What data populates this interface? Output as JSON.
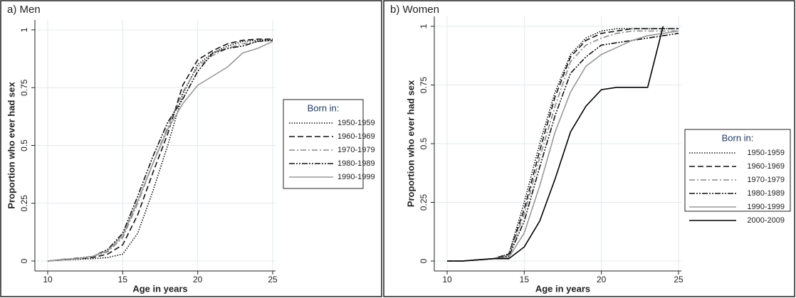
{
  "chart_data": [
    {
      "type": "line",
      "title": "a)  Men",
      "xlabel": "Age in years",
      "ylabel": "Proportion who ever had sex",
      "legend_title": "Born in:",
      "x": [
        10,
        11,
        12,
        13,
        14,
        15,
        16,
        17,
        18,
        19,
        20,
        21,
        22,
        23,
        24,
        25
      ],
      "xlim": [
        10,
        25
      ],
      "xticks": [
        10,
        15,
        20,
        25
      ],
      "ylim": [
        0,
        1
      ],
      "yticks": [
        0,
        0.25,
        0.5,
        0.75,
        1
      ],
      "grid": true,
      "legend": "right",
      "series": [
        {
          "name": "1950-1959",
          "color": "#111111",
          "dash": "dotted",
          "values": [
            0,
            0.005,
            0.007,
            0.01,
            0.015,
            0.03,
            0.12,
            0.3,
            0.5,
            0.72,
            0.85,
            0.9,
            0.93,
            0.95,
            0.955,
            0.96
          ]
        },
        {
          "name": "1960-1969",
          "color": "#111111",
          "dash": "dashed",
          "values": [
            0,
            0.005,
            0.01,
            0.015,
            0.03,
            0.07,
            0.2,
            0.38,
            0.55,
            0.76,
            0.87,
            0.91,
            0.94,
            0.955,
            0.96,
            0.96
          ]
        },
        {
          "name": "1970-1979",
          "color": "#888888",
          "dash": "dashdot",
          "values": [
            0,
            0.005,
            0.01,
            0.02,
            0.04,
            0.1,
            0.25,
            0.42,
            0.58,
            0.73,
            0.84,
            0.89,
            0.92,
            0.94,
            0.95,
            0.955
          ]
        },
        {
          "name": "1980-1989",
          "color": "#111111",
          "dash": "dashdotdot",
          "values": [
            0,
            0.007,
            0.012,
            0.02,
            0.05,
            0.12,
            0.28,
            0.45,
            0.6,
            0.7,
            0.82,
            0.9,
            0.92,
            0.93,
            0.95,
            0.955
          ]
        },
        {
          "name": "1990-1999",
          "color": "#999999",
          "dash": "solid",
          "values": [
            0,
            0.007,
            0.01,
            0.02,
            0.045,
            0.11,
            0.26,
            0.42,
            0.57,
            0.68,
            0.76,
            0.8,
            0.84,
            0.9,
            0.92,
            0.95
          ]
        }
      ]
    },
    {
      "type": "line",
      "title": "b) Women",
      "xlabel": "Age in years",
      "ylabel": "Proportion who ever had sex",
      "legend_title": "Born in:",
      "x": [
        10,
        11,
        12,
        13,
        14,
        15,
        16,
        17,
        18,
        19,
        20,
        21,
        22,
        23,
        24,
        25
      ],
      "xlim": [
        10,
        25
      ],
      "xticks": [
        10,
        15,
        20,
        25
      ],
      "ylim": [
        0,
        1
      ],
      "yticks": [
        0,
        0.25,
        0.5,
        0.75,
        1
      ],
      "grid": true,
      "legend": "right",
      "series": [
        {
          "name": "1950-1959",
          "color": "#111111",
          "dash": "dotted",
          "values": [
            0,
            0,
            0.005,
            0.01,
            0.03,
            0.25,
            0.5,
            0.72,
            0.88,
            0.95,
            0.98,
            0.99,
            0.99,
            0.99,
            0.99,
            0.99
          ]
        },
        {
          "name": "1960-1969",
          "color": "#111111",
          "dash": "dashed",
          "values": [
            0,
            0,
            0.005,
            0.01,
            0.03,
            0.22,
            0.47,
            0.7,
            0.87,
            0.94,
            0.97,
            0.98,
            0.99,
            0.99,
            0.99,
            0.99
          ]
        },
        {
          "name": "1970-1979",
          "color": "#888888",
          "dash": "dashdot",
          "values": [
            0,
            0,
            0.005,
            0.01,
            0.025,
            0.2,
            0.44,
            0.66,
            0.85,
            0.92,
            0.95,
            0.97,
            0.98,
            0.98,
            0.98,
            0.98
          ]
        },
        {
          "name": "1980-1989",
          "color": "#111111",
          "dash": "dashdotdot",
          "values": [
            0,
            0,
            0.005,
            0.01,
            0.02,
            0.17,
            0.4,
            0.62,
            0.8,
            0.87,
            0.92,
            0.93,
            0.94,
            0.95,
            0.96,
            0.97
          ]
        },
        {
          "name": "1990-1999",
          "color": "#999999",
          "dash": "solid",
          "values": [
            0,
            0,
            0.005,
            0.01,
            0.015,
            0.12,
            0.32,
            0.55,
            0.72,
            0.83,
            0.88,
            0.91,
            0.94,
            0.96,
            0.97,
            0.98
          ]
        },
        {
          "name": "2000-2009",
          "color": "#000000",
          "dash": "solid",
          "values": [
            0,
            0,
            0.005,
            0.01,
            0.01,
            0.06,
            0.17,
            0.35,
            0.55,
            0.66,
            0.73,
            0.74,
            0.74,
            0.74,
            1,
            null
          ]
        }
      ]
    }
  ]
}
